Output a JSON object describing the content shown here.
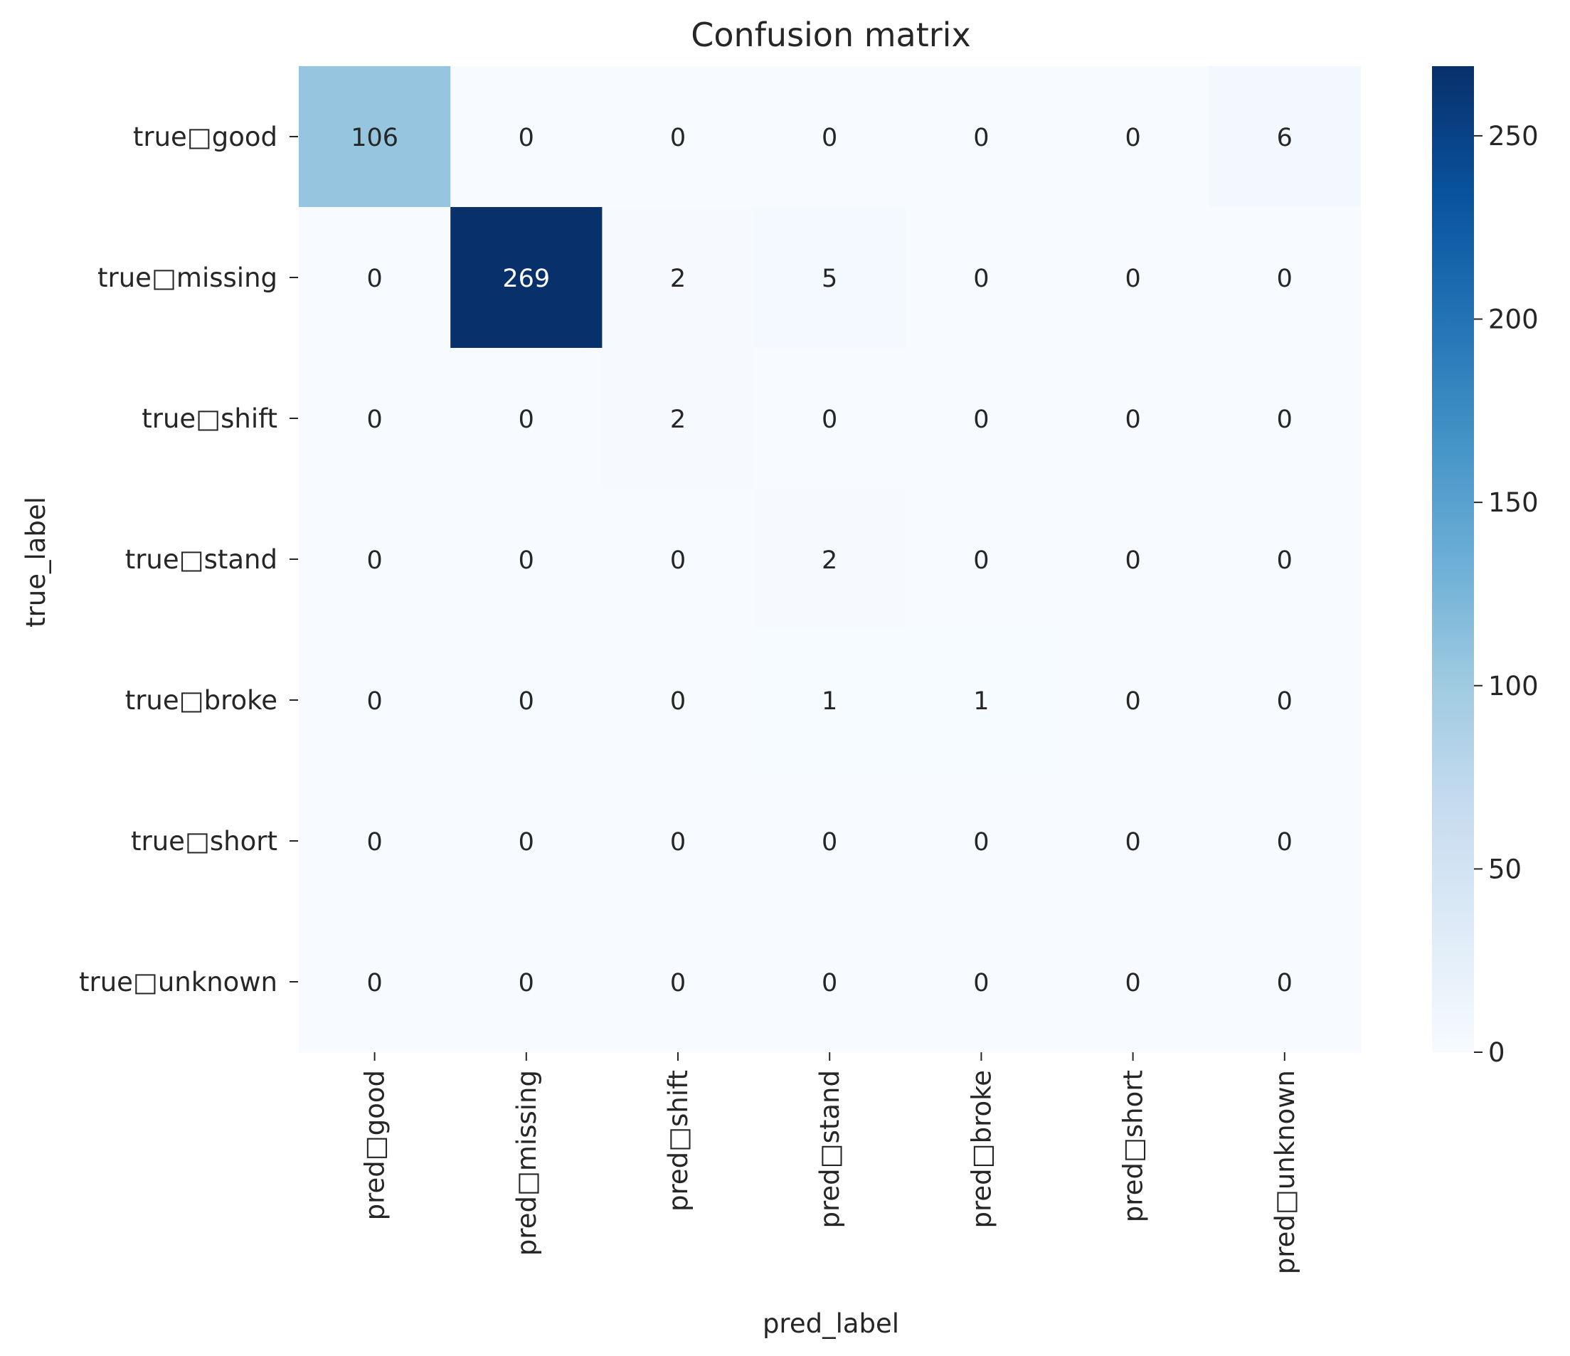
{
  "chart_data": {
    "type": "heatmap",
    "title": "Confusion matrix",
    "xlabel": "pred_label",
    "ylabel": "true_label",
    "x_categories": [
      "pred□good",
      "pred□missing",
      "pred□shift",
      "pred□stand",
      "pred□broke",
      "pred□short",
      "pred□unknown"
    ],
    "y_categories": [
      "true□good",
      "true□missing",
      "true□shift",
      "true□stand",
      "true□broke",
      "true□short",
      "true□unknown"
    ],
    "values": [
      [
        106,
        0,
        0,
        0,
        0,
        0,
        6
      ],
      [
        0,
        269,
        2,
        5,
        0,
        0,
        0
      ],
      [
        0,
        0,
        2,
        0,
        0,
        0,
        0
      ],
      [
        0,
        0,
        0,
        2,
        0,
        0,
        0
      ],
      [
        0,
        0,
        0,
        1,
        1,
        0,
        0
      ],
      [
        0,
        0,
        0,
        0,
        0,
        0,
        0
      ],
      [
        0,
        0,
        0,
        0,
        0,
        0,
        0
      ]
    ],
    "colorbar": {
      "colormap": "Blues",
      "range": [
        0,
        269
      ],
      "ticks": [
        0,
        50,
        100,
        150,
        200,
        250
      ]
    },
    "grid": false
  }
}
